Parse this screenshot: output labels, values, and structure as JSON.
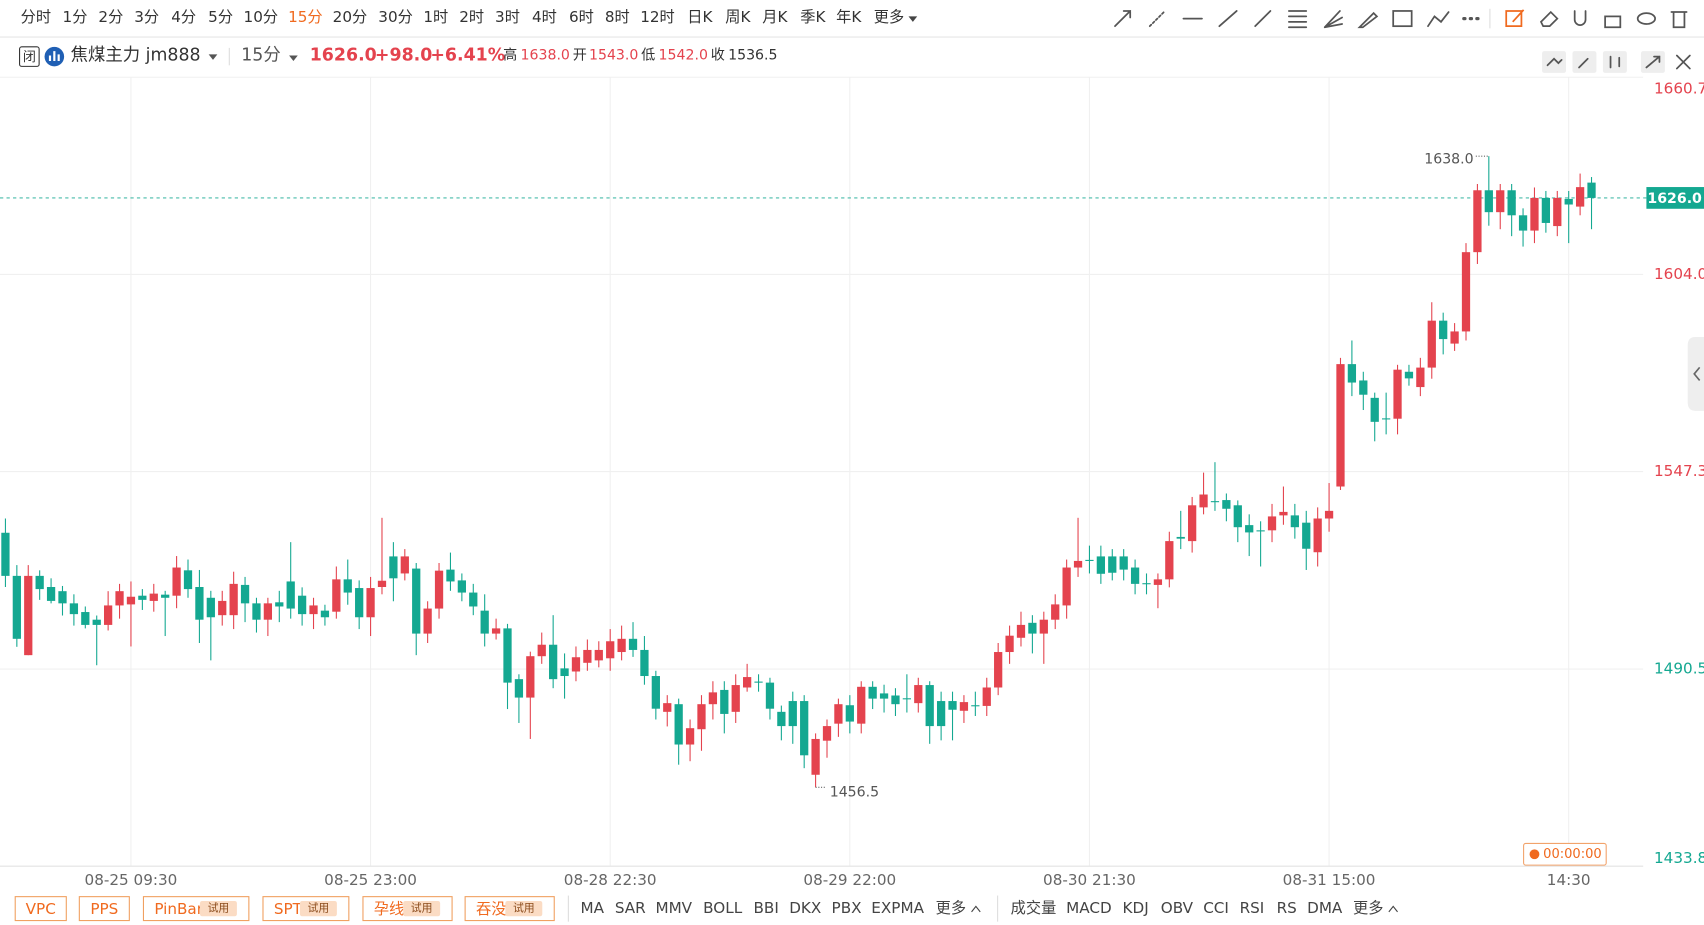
{
  "toolbar": {
    "periods": [
      "分时",
      "1分",
      "2分",
      "3分",
      "4分",
      "5分",
      "10分",
      "15分",
      "20分",
      "30分",
      "1时",
      "2时",
      "3时",
      "4时",
      "6时",
      "8时",
      "12时",
      "日K",
      "周K",
      "月K",
      "季K",
      "年K"
    ],
    "active": "15分",
    "more": "更多"
  },
  "header": {
    "symbol": "焦煤主力 jm888",
    "period": "15分",
    "change": "+98.0",
    "change_pct": "+6.41%",
    "high_label": "高",
    "open_label": "开",
    "low_label": "低",
    "close_label": "收"
  },
  "chart_data": {
    "type": "candlestick",
    "up_color": "#e4434e",
    "down_color": "#14a891",
    "quote": {
      "last": {
        "value": 1626,
        "label": "1626.0"
      },
      "high": {
        "value": 1638,
        "label": "1638.0"
      },
      "open": {
        "value": 1543,
        "label": "1543.0"
      },
      "low": {
        "value": 1542,
        "label": "1542.0"
      },
      "prev_close": {
        "value": 1536.5,
        "label": "1536.5"
      }
    },
    "ylim": [
      1433.8,
      1660.7
    ],
    "yticks": [
      1660.7,
      {
        "value": 1604,
        "label": "1604.0"
      },
      1547.3,
      1490.5,
      1433.8
    ],
    "grid": true,
    "annotations": [
      {
        "label": "1638.0",
        "value": 1638
      },
      {
        "label": "1456.5",
        "value": 1456.5
      }
    ],
    "categories": [
      null,
      null,
      null,
      null,
      null,
      null,
      null,
      null,
      null,
      null,
      null,
      "08-25 09:30",
      null,
      null,
      null,
      null,
      null,
      null,
      null,
      null,
      null,
      null,
      null,
      null,
      null,
      null,
      null,
      null,
      null,
      null,
      null,
      null,
      "08-25 23:00",
      null,
      null,
      null,
      null,
      null,
      null,
      null,
      null,
      null,
      null,
      null,
      null,
      null,
      null,
      null,
      null,
      null,
      null,
      null,
      null,
      "08-28 22:30",
      null,
      null,
      null,
      null,
      null,
      null,
      null,
      null,
      null,
      null,
      null,
      null,
      null,
      null,
      null,
      null,
      null,
      null,
      null,
      null,
      "08-29 22:00",
      null,
      null,
      null,
      null,
      null,
      null,
      null,
      null,
      null,
      null,
      null,
      null,
      null,
      null,
      null,
      null,
      null,
      null,
      null,
      null,
      "08-30 21:30",
      null,
      null,
      null,
      null,
      null,
      null,
      null,
      null,
      null,
      null,
      null,
      null,
      null,
      null,
      null,
      null,
      null,
      null,
      null,
      null,
      "08-31 15:00",
      null,
      null,
      null,
      null,
      null,
      null,
      null,
      null,
      null,
      null,
      null,
      null,
      null,
      null,
      null,
      null,
      null,
      null,
      null,
      null,
      "14:30",
      null,
      null
    ],
    "candles": [
      [
        1529.7,
        1533.8,
        1514.1,
        1517.3
      ],
      [
        1517.3,
        1520.4,
        1496.9,
        1499.2
      ],
      [
        1494.5,
        1520.4,
        1494.5,
        1517.3
      ],
      [
        1517.3,
        1518.9,
        1510.4,
        1513.5
      ],
      [
        1514.1,
        1516.6,
        1509.4,
        1510.1
      ],
      [
        1512.9,
        1514.4,
        1505.9,
        1509.4
      ],
      [
        1509.4,
        1512,
        1503,
        1506.3
      ],
      [
        1506.9,
        1508.5,
        1502.2,
        1503.2
      ],
      [
        1504.7,
        1505.9,
        1491.6,
        1503.2
      ],
      [
        1503.2,
        1512.9,
        1501.6,
        1508.8
      ],
      [
        1508.8,
        1515,
        1505,
        1512.9
      ],
      [
        1509.1,
        1515.7,
        1497,
        1511.3
      ],
      [
        1511.6,
        1513.5,
        1507.5,
        1510.4
      ],
      [
        1510.1,
        1515,
        1507,
        1512.2
      ],
      [
        1511.9,
        1513,
        1500,
        1511
      ],
      [
        1511.6,
        1523,
        1508,
        1519.7
      ],
      [
        1518.9,
        1522,
        1511,
        1513.5
      ],
      [
        1514.1,
        1519,
        1498,
        1504.7
      ],
      [
        1511,
        1513,
        1493,
        1505.4
      ],
      [
        1506,
        1513,
        1503,
        1510.1
      ],
      [
        1506,
        1518.5,
        1502,
        1515
      ],
      [
        1514.7,
        1517,
        1504,
        1509.4
      ],
      [
        1509.4,
        1511,
        1501,
        1504.7
      ],
      [
        1504.7,
        1511,
        1500,
        1509.4
      ],
      [
        1509.7,
        1513,
        1504,
        1508.5
      ],
      [
        1515.7,
        1527,
        1505,
        1507.9
      ],
      [
        1511.6,
        1514,
        1503,
        1506.3
      ],
      [
        1506.3,
        1511,
        1502,
        1508.8
      ],
      [
        1507.3,
        1509,
        1503,
        1505.4
      ],
      [
        1507,
        1520,
        1505,
        1516.3
      ],
      [
        1516.3,
        1522,
        1509,
        1512.5
      ],
      [
        1513.8,
        1516,
        1502,
        1505.4
      ],
      [
        1505.4,
        1517,
        1500,
        1513.8
      ],
      [
        1514.1,
        1534,
        1512,
        1515.9
      ],
      [
        1522.9,
        1527,
        1510,
        1516.6
      ],
      [
        1518,
        1525,
        1516,
        1522.9
      ],
      [
        1519.4,
        1521,
        1494.5,
        1500.7
      ],
      [
        1500.7,
        1510,
        1498,
        1507.9
      ],
      [
        1507.9,
        1521,
        1505,
        1518.8
      ],
      [
        1519.1,
        1524,
        1513,
        1515.7
      ],
      [
        1516,
        1518,
        1510,
        1512.5
      ],
      [
        1512.5,
        1515,
        1506,
        1508.5
      ],
      [
        1507.3,
        1512,
        1497,
        1500.7
      ],
      [
        1500.7,
        1505,
        1499,
        1502.2
      ],
      [
        1502.2,
        1503.5,
        1479,
        1486.6
      ],
      [
        1487.6,
        1489,
        1475,
        1482.3
      ],
      [
        1482.3,
        1495.5,
        1470.4,
        1494.2
      ],
      [
        1494.2,
        1501,
        1492,
        1497.5
      ],
      [
        1497.5,
        1506,
        1485,
        1487.6
      ],
      [
        1490.7,
        1495,
        1482,
        1488.5
      ],
      [
        1489.8,
        1497,
        1487,
        1493.9
      ],
      [
        1492.3,
        1499,
        1490,
        1496
      ],
      [
        1493,
        1498.5,
        1491,
        1496
      ],
      [
        1493.6,
        1502,
        1490,
        1498.5
      ],
      [
        1495.4,
        1503,
        1493,
        1499.2
      ],
      [
        1499.2,
        1504,
        1494,
        1496
      ],
      [
        1496,
        1500,
        1486,
        1488.5
      ],
      [
        1488.5,
        1490,
        1476,
        1479.1
      ],
      [
        1478.2,
        1483,
        1474,
        1480.7
      ],
      [
        1480.4,
        1482,
        1463,
        1468.8
      ],
      [
        1468.8,
        1476,
        1464,
        1473.5
      ],
      [
        1473.2,
        1483,
        1467,
        1480.4
      ],
      [
        1480.4,
        1487,
        1476,
        1483.8
      ],
      [
        1484.5,
        1487,
        1472,
        1477.6
      ],
      [
        1478.2,
        1489,
        1475,
        1485.9
      ],
      [
        1485.2,
        1492,
        1484,
        1488.2
      ],
      [
        1486.9,
        1489,
        1484,
        1486.6
      ],
      [
        1486.6,
        1488,
        1476,
        1479.1
      ],
      [
        1478.2,
        1480,
        1470,
        1474.1
      ],
      [
        1481.3,
        1484,
        1469,
        1474.1
      ],
      [
        1481.3,
        1483,
        1462,
        1465.7
      ],
      [
        1460.1,
        1472,
        1456.5,
        1470.4
      ],
      [
        1469.9,
        1476,
        1465,
        1474.1
      ],
      [
        1474.8,
        1482,
        1471,
        1480.4
      ],
      [
        1480.1,
        1483,
        1472,
        1475.4
      ],
      [
        1474.8,
        1487,
        1472,
        1485.4
      ],
      [
        1485.4,
        1487,
        1479,
        1482
      ],
      [
        1483.5,
        1486,
        1478,
        1482
      ],
      [
        1482.9,
        1485,
        1477,
        1480.4
      ],
      [
        1482.1,
        1489,
        1478,
        1481.9
      ],
      [
        1480.7,
        1488,
        1478,
        1485.9
      ],
      [
        1485.9,
        1487,
        1469,
        1474.1
      ],
      [
        1481.3,
        1484,
        1470,
        1474.1
      ],
      [
        1481.3,
        1484,
        1470,
        1478.8
      ],
      [
        1478.5,
        1483,
        1475,
        1481
      ],
      [
        1480.1,
        1484,
        1477,
        1479.9
      ],
      [
        1479.9,
        1488,
        1477,
        1485.2
      ],
      [
        1485.2,
        1498,
        1483,
        1495.4
      ],
      [
        1495.4,
        1503,
        1492,
        1500.1
      ],
      [
        1499.5,
        1507,
        1497,
        1503.2
      ],
      [
        1503.8,
        1506,
        1495,
        1500.7
      ],
      [
        1500.7,
        1507,
        1492,
        1504.7
      ],
      [
        1504.7,
        1512,
        1502,
        1509.1
      ],
      [
        1508.8,
        1522,
        1505,
        1519.7
      ],
      [
        1519.7,
        1534,
        1517,
        1521.6
      ],
      [
        1521.9,
        1526,
        1518,
        1521.8
      ],
      [
        1522.9,
        1526,
        1515,
        1517.9
      ],
      [
        1522.9,
        1525,
        1516,
        1518.2
      ],
      [
        1522.9,
        1525,
        1516,
        1519.1
      ],
      [
        1519.7,
        1522,
        1512,
        1515
      ],
      [
        1515.2,
        1518,
        1512,
        1514.9
      ],
      [
        1514.7,
        1518,
        1508,
        1516.3
      ],
      [
        1516.3,
        1530,
        1514,
        1527.3
      ],
      [
        1528.5,
        1536,
        1525,
        1528
      ],
      [
        1527.3,
        1540,
        1524,
        1537.6
      ],
      [
        1537,
        1547,
        1535,
        1540.7
      ],
      [
        1538.8,
        1550,
        1536,
        1538.6
      ],
      [
        1539.1,
        1541,
        1533,
        1536.6
      ],
      [
        1537.6,
        1539,
        1527,
        1531.3
      ],
      [
        1531.9,
        1535,
        1523,
        1529.8
      ],
      [
        1530.4,
        1533,
        1520,
        1530.3
      ],
      [
        1530.4,
        1538,
        1527,
        1534.4
      ],
      [
        1534.7,
        1543,
        1532,
        1535.7
      ],
      [
        1534.7,
        1538,
        1528,
        1531.3
      ],
      [
        1532.6,
        1536,
        1519,
        1525.1
      ],
      [
        1524.1,
        1537,
        1520,
        1533.8
      ],
      [
        1533.8,
        1544,
        1530,
        1536
      ],
      [
        1543,
        1580,
        1542,
        1578.2
      ],
      [
        1578.2,
        1585,
        1569,
        1572.9
      ],
      [
        1573.5,
        1576,
        1565,
        1569.4
      ],
      [
        1568.5,
        1570,
        1556,
        1561.6
      ],
      [
        1562.6,
        1570,
        1558,
        1562.5
      ],
      [
        1562.5,
        1578,
        1558,
        1576.6
      ],
      [
        1576,
        1578,
        1572,
        1574.1
      ],
      [
        1571.6,
        1580,
        1569,
        1577.2
      ],
      [
        1577.2,
        1596,
        1574,
        1590.7
      ],
      [
        1590.7,
        1593,
        1581,
        1585.4
      ],
      [
        1584.1,
        1590,
        1582,
        1587.6
      ],
      [
        1587.6,
        1613,
        1585,
        1610.4
      ],
      [
        1610.4,
        1630,
        1607,
        1628.2
      ],
      [
        1628.2,
        1638,
        1618,
        1621.9
      ],
      [
        1621.9,
        1630,
        1617,
        1628.2
      ],
      [
        1628.2,
        1630,
        1615,
        1621
      ],
      [
        1621,
        1623,
        1612,
        1616.6
      ],
      [
        1616.6,
        1629,
        1613,
        1626
      ],
      [
        1626,
        1628,
        1616,
        1618.8
      ],
      [
        1617.9,
        1628,
        1615,
        1626
      ],
      [
        1625.7,
        1628,
        1613,
        1624.1
      ],
      [
        1623.5,
        1633,
        1621,
        1629.1
      ],
      [
        1630.4,
        1632,
        1617,
        1626
      ]
    ]
  },
  "timer": "00:00:00",
  "patterns": [
    {
      "name": "VPC"
    },
    {
      "name": "PPS"
    },
    {
      "name": "PinBar",
      "badge": "试用"
    },
    {
      "name": "SPT",
      "badge": "试用"
    },
    {
      "name": "孕线",
      "badge": "试用"
    },
    {
      "name": "吞没",
      "badge": "试用"
    }
  ],
  "main_indicators": [
    "MA",
    "SAR",
    "MMV",
    "BOLL",
    "BBI",
    "DKX",
    "PBX",
    "EXPMA"
  ],
  "sub_indicators": [
    "成交量",
    "MACD",
    "KDJ",
    "OBV",
    "CCI",
    "RSI",
    "RS",
    "DMA"
  ],
  "more": "更多"
}
